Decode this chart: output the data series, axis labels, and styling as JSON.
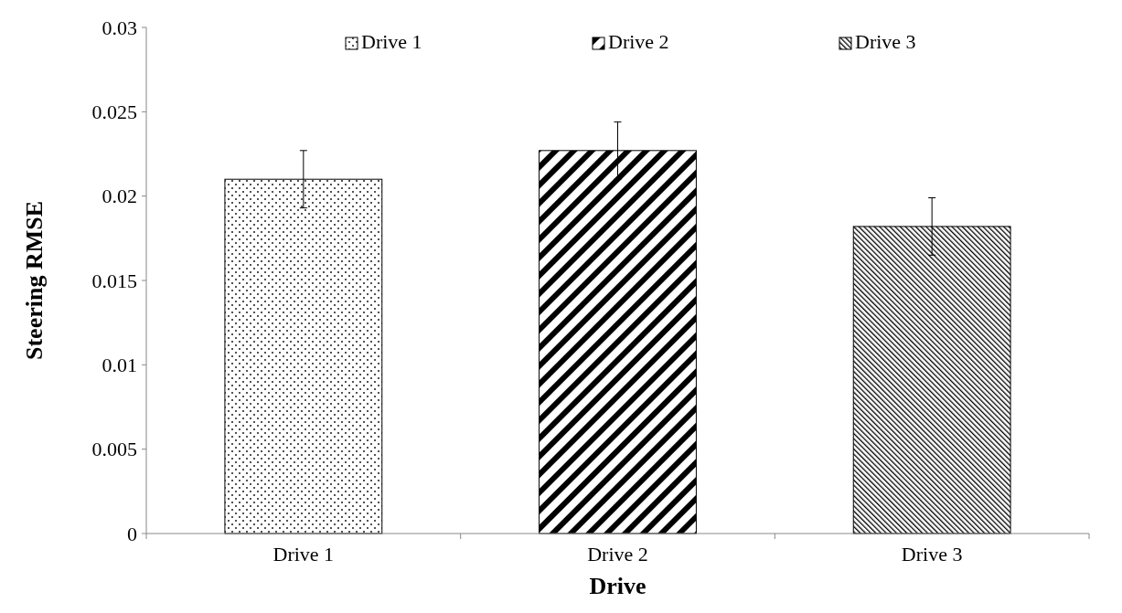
{
  "chart_data": {
    "type": "bar",
    "xlabel": "Drive",
    "ylabel": "Steering RMSE",
    "categories": [
      "Drive 1",
      "Drive 2",
      "Drive 3"
    ],
    "series": [
      {
        "name": "Drive 1",
        "color": "#000000",
        "values": [
          0.021,
          null,
          null
        ],
        "errors": [
          0.0017,
          null,
          null
        ]
      },
      {
        "name": "Drive 2",
        "color": "#000000",
        "values": [
          null,
          0.0227,
          null
        ],
        "errors": [
          null,
          0.0017,
          null
        ]
      },
      {
        "name": "Drive 3",
        "color": "#000000",
        "values": [
          null,
          null,
          0.0182
        ],
        "errors": [
          null,
          null,
          0.0017
        ]
      }
    ],
    "ylim": [
      0,
      0.03
    ],
    "yticks": [
      0,
      0.005,
      0.01,
      0.015,
      0.02,
      0.025,
      0.03
    ],
    "legend": "top",
    "grid": false
  }
}
